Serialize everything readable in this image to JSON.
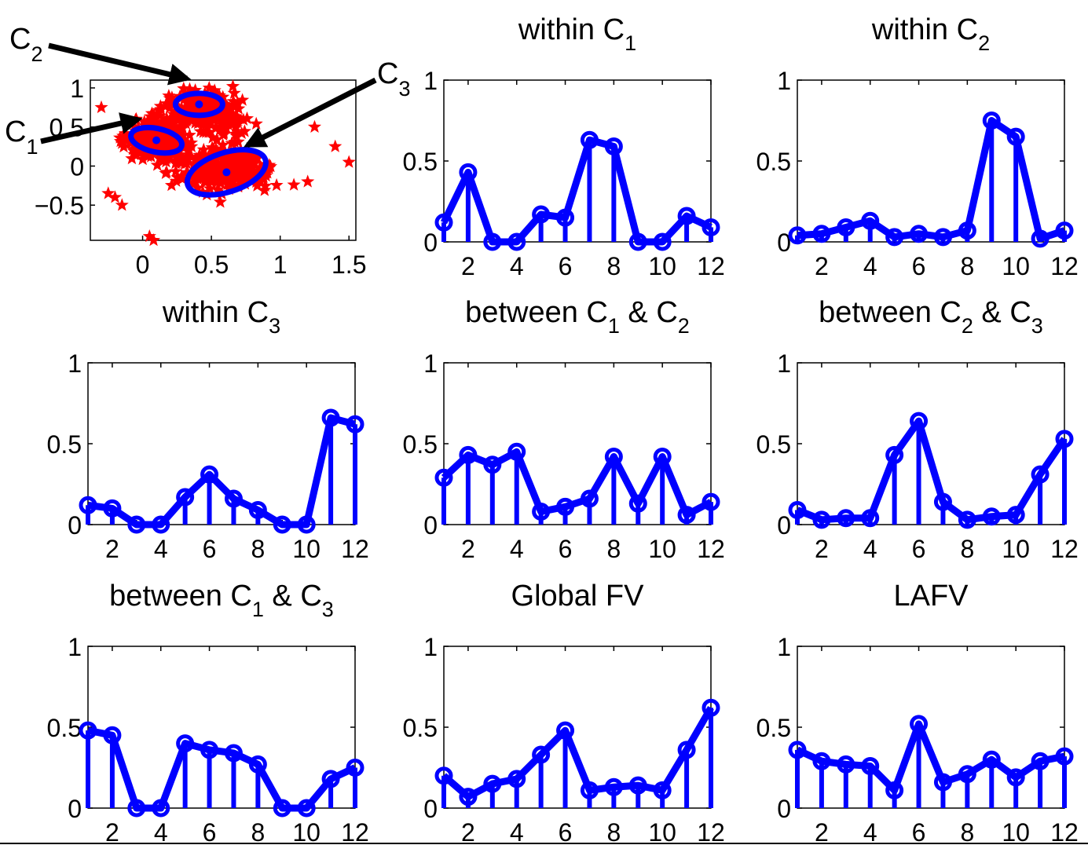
{
  "colors": {
    "series": "#0000ff",
    "scatter": "#ff0000",
    "arrow": "#000000"
  },
  "scatter_panel": {
    "x_ticks": [
      "0",
      "0.5",
      "1",
      "1.5"
    ],
    "y_ticks": [
      "1",
      "0.5",
      "0",
      "−0.5"
    ],
    "labels": [
      {
        "main": "C",
        "sub": "1"
      },
      {
        "main": "C",
        "sub": "2"
      },
      {
        "main": "C",
        "sub": "3"
      }
    ]
  },
  "x_ticks": [
    "2",
    "4",
    "6",
    "8",
    "10",
    "12"
  ],
  "y_ticks": [
    "1",
    "0.5",
    "0"
  ],
  "chart_data": [
    {
      "type": "scatter",
      "xlim": [
        -0.38,
        1.55
      ],
      "ylim": [
        -0.95,
        1.1
      ],
      "marker": "star",
      "cluster_centers": [
        {
          "name": "C1",
          "x": 0.1,
          "y": 0.33
        },
        {
          "name": "C2",
          "x": 0.41,
          "y": 0.79
        },
        {
          "name": "C3",
          "x": 0.61,
          "y": -0.08
        }
      ]
    },
    {
      "type": "stem",
      "title": "within C",
      "title_sub": "1",
      "title_tail": "",
      "title_sub2": "",
      "xlim": [
        1,
        12
      ],
      "ylim": [
        0,
        1
      ],
      "x": [
        1,
        2,
        3,
        4,
        5,
        6,
        7,
        8,
        9,
        10,
        11,
        12
      ],
      "values": [
        0.12,
        0.43,
        0.0,
        0.0,
        0.17,
        0.15,
        0.63,
        0.59,
        0.0,
        0.0,
        0.16,
        0.09
      ]
    },
    {
      "type": "stem",
      "title": "within C",
      "title_sub": "2",
      "title_tail": "",
      "title_sub2": "",
      "xlim": [
        1,
        12
      ],
      "ylim": [
        0,
        1
      ],
      "x": [
        1,
        2,
        3,
        4,
        5,
        6,
        7,
        8,
        9,
        10,
        11,
        12
      ],
      "values": [
        0.04,
        0.05,
        0.09,
        0.13,
        0.03,
        0.05,
        0.03,
        0.07,
        0.75,
        0.65,
        0.02,
        0.07
      ]
    },
    {
      "type": "stem",
      "title": "within C",
      "title_sub": "3",
      "title_tail": "",
      "title_sub2": "",
      "xlim": [
        1,
        12
      ],
      "ylim": [
        0,
        1
      ],
      "x": [
        1,
        2,
        3,
        4,
        5,
        6,
        7,
        8,
        9,
        10,
        11,
        12
      ],
      "values": [
        0.12,
        0.1,
        0.0,
        0.0,
        0.17,
        0.31,
        0.16,
        0.09,
        0.0,
        0.0,
        0.66,
        0.62
      ]
    },
    {
      "type": "stem",
      "title": "between C",
      "title_sub": "1",
      "title_tail": " & C",
      "title_sub2": "2",
      "xlim": [
        1,
        12
      ],
      "ylim": [
        0,
        1
      ],
      "x": [
        1,
        2,
        3,
        4,
        5,
        6,
        7,
        8,
        9,
        10,
        11,
        12
      ],
      "values": [
        0.29,
        0.43,
        0.37,
        0.45,
        0.08,
        0.11,
        0.16,
        0.42,
        0.13,
        0.42,
        0.06,
        0.14
      ]
    },
    {
      "type": "stem",
      "title": "between C",
      "title_sub": "2",
      "title_tail": " & C",
      "title_sub2": "3",
      "xlim": [
        1,
        12
      ],
      "ylim": [
        0,
        1
      ],
      "x": [
        1,
        2,
        3,
        4,
        5,
        6,
        7,
        8,
        9,
        10,
        11,
        12
      ],
      "values": [
        0.09,
        0.03,
        0.04,
        0.04,
        0.43,
        0.64,
        0.14,
        0.03,
        0.05,
        0.06,
        0.31,
        0.53
      ]
    },
    {
      "type": "stem",
      "title": "between C",
      "title_sub": "1",
      "title_tail": " & C",
      "title_sub2": "3",
      "xlim": [
        1,
        12
      ],
      "ylim": [
        0,
        1
      ],
      "x": [
        1,
        2,
        3,
        4,
        5,
        6,
        7,
        8,
        9,
        10,
        11,
        12
      ],
      "values": [
        0.48,
        0.45,
        0.0,
        0.0,
        0.4,
        0.36,
        0.34,
        0.27,
        0.0,
        0.0,
        0.18,
        0.25
      ]
    },
    {
      "type": "stem",
      "title": "Global FV",
      "title_sub": "",
      "title_tail": "",
      "title_sub2": "",
      "xlim": [
        1,
        12
      ],
      "ylim": [
        0,
        1
      ],
      "x": [
        1,
        2,
        3,
        4,
        5,
        6,
        7,
        8,
        9,
        10,
        11,
        12
      ],
      "values": [
        0.2,
        0.07,
        0.15,
        0.18,
        0.33,
        0.48,
        0.11,
        0.13,
        0.14,
        0.11,
        0.36,
        0.62
      ]
    },
    {
      "type": "stem",
      "title": "LAFV",
      "title_sub": "",
      "title_tail": "",
      "title_sub2": "",
      "xlim": [
        1,
        12
      ],
      "ylim": [
        0,
        1
      ],
      "x": [
        1,
        2,
        3,
        4,
        5,
        6,
        7,
        8,
        9,
        10,
        11,
        12
      ],
      "values": [
        0.36,
        0.29,
        0.27,
        0.26,
        0.11,
        0.52,
        0.16,
        0.21,
        0.3,
        0.19,
        0.29,
        0.32
      ]
    }
  ]
}
